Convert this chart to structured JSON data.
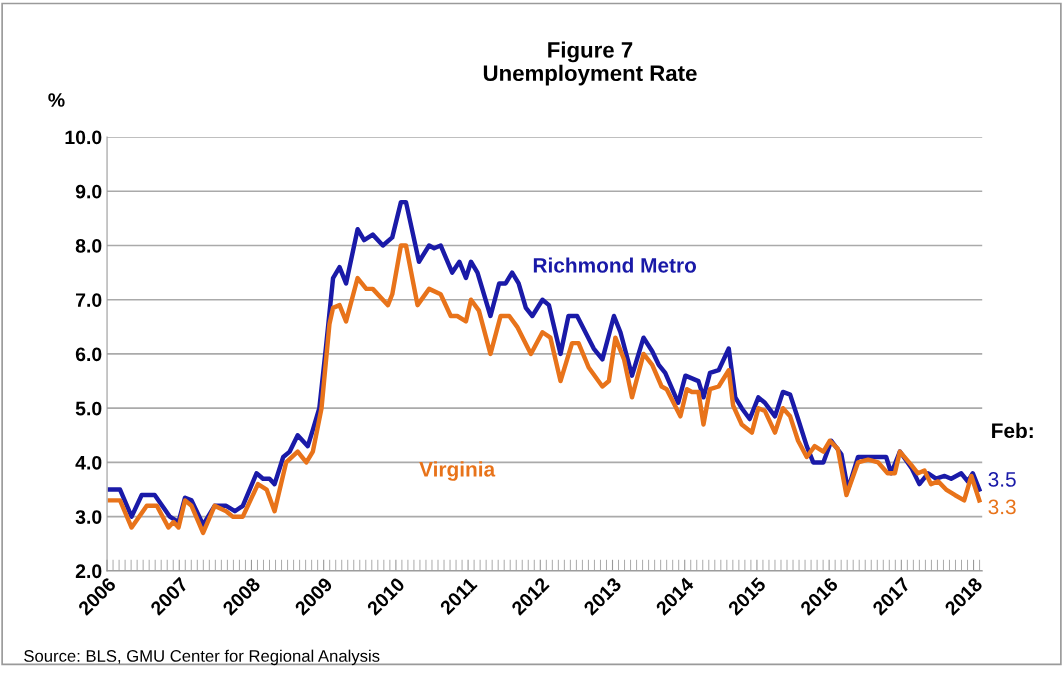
{
  "chart_data": {
    "type": "line",
    "title": "Figure 7\nUnemployment Rate",
    "ylabel": "%",
    "xlim": [
      2006,
      2018.12
    ],
    "xticks": [
      2006,
      2007,
      2008,
      2009,
      2010,
      2011,
      2012,
      2013,
      2014,
      2015,
      2016,
      2017,
      2018
    ],
    "ylim": [
      2.0,
      10.0
    ],
    "yticks": [
      {
        "value": 2,
        "label": "2.0"
      },
      {
        "value": 3,
        "label": "3.0"
      },
      {
        "value": 4,
        "label": "4.0"
      },
      {
        "value": 5,
        "label": "5.0"
      },
      {
        "value": 6,
        "label": "6.0"
      },
      {
        "value": 7,
        "label": "7.0"
      },
      {
        "value": 8,
        "label": "8.0"
      },
      {
        "value": 9,
        "label": "9.0"
      },
      {
        "value": 10,
        "label": "10.0"
      }
    ],
    "grid": "y",
    "legend": false,
    "marker": "none",
    "line_style": "solid",
    "annotations": [
      "Feb:",
      "Source: BLS, GMU Center for Regional Analysis"
    ],
    "series": [
      {
        "name": "Richmond Metro",
        "color": "#1a1aa8",
        "x": [
          2006.04,
          2006.18,
          2006.34,
          2006.48,
          2006.66,
          2006.87,
          2006.99,
          2007.08,
          2007.17,
          2007.33,
          2007.49,
          2007.65,
          2007.77,
          2007.88,
          2008.07,
          2008.16,
          2008.25,
          2008.32,
          2008.44,
          2008.53,
          2008.64,
          2008.78,
          2008.85,
          2008.94,
          2009.03,
          2009.13,
          2009.22,
          2009.31,
          2009.47,
          2009.56,
          2009.68,
          2009.82,
          2009.95,
          2010.07,
          2010.14,
          2010.32,
          2010.46,
          2010.53,
          2010.62,
          2010.78,
          2010.88,
          2010.97,
          2011.04,
          2011.13,
          2011.31,
          2011.43,
          2011.52,
          2011.61,
          2011.7,
          2011.8,
          2011.89,
          2012.03,
          2012.12,
          2012.28,
          2012.39,
          2012.51,
          2012.74,
          2012.86,
          2013.02,
          2013.11,
          2013.27,
          2013.43,
          2013.55,
          2013.64,
          2013.73,
          2013.91,
          2014.01,
          2014.19,
          2014.26,
          2014.35,
          2014.47,
          2014.61,
          2014.7,
          2014.79,
          2014.9,
          2015.02,
          2015.11,
          2015.25,
          2015.36,
          2015.46,
          2015.57,
          2015.69,
          2015.78,
          2015.92,
          2016.03,
          2016.17,
          2016.26,
          2016.4,
          2016.54,
          2016.79,
          2016.86,
          2016.98,
          2017.14,
          2017.25,
          2017.37,
          2017.48,
          2017.6,
          2017.69,
          2017.83,
          2017.92,
          2017.99,
          2018.08
        ],
        "values": [
          3.5,
          3.5,
          3.0,
          3.4,
          3.4,
          3.0,
          2.9,
          3.35,
          3.3,
          2.85,
          3.2,
          3.2,
          3.1,
          3.2,
          3.8,
          3.7,
          3.7,
          3.6,
          4.1,
          4.2,
          4.5,
          4.3,
          4.6,
          5.0,
          6.1,
          7.4,
          7.6,
          7.3,
          8.3,
          8.1,
          8.2,
          8.0,
          8.15,
          8.8,
          8.8,
          7.7,
          8.0,
          7.95,
          8.0,
          7.5,
          7.7,
          7.4,
          7.7,
          7.5,
          6.7,
          7.3,
          7.3,
          7.5,
          7.3,
          6.85,
          6.7,
          7.0,
          6.9,
          6.0,
          6.7,
          6.7,
          6.1,
          5.9,
          6.7,
          6.4,
          5.6,
          6.3,
          6.05,
          5.8,
          5.65,
          5.1,
          5.6,
          5.5,
          5.2,
          5.65,
          5.7,
          6.1,
          5.2,
          5.0,
          4.8,
          5.2,
          5.1,
          4.85,
          5.3,
          5.25,
          4.8,
          4.3,
          4.0,
          4.0,
          4.4,
          4.15,
          3.5,
          4.1,
          4.1,
          4.1,
          3.8,
          4.2,
          3.9,
          3.6,
          3.8,
          3.7,
          3.75,
          3.7,
          3.8,
          3.65,
          3.8,
          3.5
        ],
        "value_labels": [
          null,
          null,
          null,
          null,
          null,
          null,
          null,
          null,
          null,
          null,
          null,
          null,
          null,
          null,
          null,
          null,
          null,
          null,
          null,
          null,
          null,
          null,
          null,
          null,
          null,
          null,
          null,
          null,
          null,
          null,
          null,
          null,
          null,
          null,
          null,
          null,
          null,
          null,
          null,
          null,
          null,
          null,
          null,
          null,
          null,
          null,
          null,
          null,
          null,
          null,
          null,
          null,
          null,
          null,
          null,
          null,
          null,
          null,
          null,
          null,
          null,
          null,
          null,
          null,
          null,
          null,
          null,
          null,
          null,
          null,
          null,
          null,
          null,
          null,
          null,
          null,
          null,
          null,
          null,
          null,
          null,
          null,
          null,
          null,
          null,
          null,
          null,
          null,
          null,
          null,
          null,
          null,
          null,
          null,
          null,
          null,
          null,
          null,
          null,
          null,
          null,
          "3.5"
        ]
      },
      {
        "name": "Virginia",
        "color": "#e8731a",
        "x": [
          2006.04,
          2006.18,
          2006.34,
          2006.55,
          2006.69,
          2006.85,
          2006.92,
          2006.99,
          2007.08,
          2007.17,
          2007.33,
          2007.49,
          2007.65,
          2007.74,
          2007.88,
          2008.09,
          2008.21,
          2008.32,
          2008.48,
          2008.64,
          2008.76,
          2008.85,
          2008.97,
          2009.08,
          2009.13,
          2009.22,
          2009.31,
          2009.47,
          2009.59,
          2009.68,
          2009.89,
          2009.95,
          2010.07,
          2010.14,
          2010.3,
          2010.46,
          2010.62,
          2010.76,
          2010.85,
          2010.97,
          2011.04,
          2011.15,
          2011.31,
          2011.45,
          2011.57,
          2011.68,
          2011.87,
          2012.03,
          2012.14,
          2012.28,
          2012.44,
          2012.53,
          2012.67,
          2012.86,
          2012.95,
          2013.04,
          2013.16,
          2013.27,
          2013.43,
          2013.55,
          2013.68,
          2013.75,
          2013.94,
          2014.03,
          2014.1,
          2014.19,
          2014.26,
          2014.35,
          2014.47,
          2014.61,
          2014.67,
          2014.79,
          2014.93,
          2015.02,
          2015.11,
          2015.25,
          2015.36,
          2015.46,
          2015.57,
          2015.69,
          2015.8,
          2015.92,
          2016.01,
          2016.12,
          2016.24,
          2016.4,
          2016.54,
          2016.68,
          2016.81,
          2016.91,
          2016.98,
          2017.14,
          2017.23,
          2017.32,
          2017.41,
          2017.51,
          2017.62,
          2017.74,
          2017.87,
          2017.97,
          2018.08
        ],
        "values": [
          3.3,
          3.3,
          2.8,
          3.2,
          3.2,
          2.8,
          2.9,
          2.8,
          3.3,
          3.2,
          2.7,
          3.2,
          3.1,
          3.0,
          3.0,
          3.6,
          3.5,
          3.1,
          4.0,
          4.2,
          4.0,
          4.2,
          5.0,
          6.55,
          6.85,
          6.9,
          6.6,
          7.4,
          7.2,
          7.2,
          6.9,
          7.1,
          8.0,
          8.0,
          6.9,
          7.2,
          7.1,
          6.7,
          6.7,
          6.6,
          7.0,
          6.8,
          6.0,
          6.7,
          6.7,
          6.5,
          6.0,
          6.4,
          6.3,
          5.5,
          6.2,
          6.2,
          5.75,
          5.4,
          5.5,
          6.3,
          5.9,
          5.2,
          6.0,
          5.8,
          5.4,
          5.35,
          4.85,
          5.35,
          5.3,
          5.3,
          4.7,
          5.35,
          5.4,
          5.7,
          5.05,
          4.7,
          4.55,
          5.0,
          4.95,
          4.55,
          5.0,
          4.85,
          4.4,
          4.1,
          4.3,
          4.2,
          4.4,
          4.25,
          3.4,
          4.0,
          4.05,
          4.0,
          3.8,
          3.8,
          4.2,
          3.95,
          3.8,
          3.85,
          3.6,
          3.65,
          3.5,
          3.4,
          3.3,
          3.75,
          3.3
        ],
        "value_labels": [
          null,
          null,
          null,
          null,
          null,
          null,
          null,
          null,
          null,
          null,
          null,
          null,
          null,
          null,
          null,
          null,
          null,
          null,
          null,
          null,
          null,
          null,
          null,
          null,
          null,
          null,
          null,
          null,
          null,
          null,
          null,
          null,
          null,
          null,
          null,
          null,
          null,
          null,
          null,
          null,
          null,
          null,
          null,
          null,
          null,
          null,
          null,
          null,
          null,
          null,
          null,
          null,
          null,
          null,
          null,
          null,
          null,
          null,
          null,
          null,
          null,
          null,
          null,
          null,
          null,
          null,
          null,
          null,
          null,
          null,
          null,
          null,
          null,
          null,
          null,
          null,
          null,
          null,
          null,
          null,
          null,
          null,
          null,
          null,
          null,
          null,
          null,
          null,
          null,
          null,
          null,
          null,
          null,
          null,
          null,
          null,
          null,
          null,
          null,
          null,
          "3.3"
        ]
      }
    ]
  }
}
